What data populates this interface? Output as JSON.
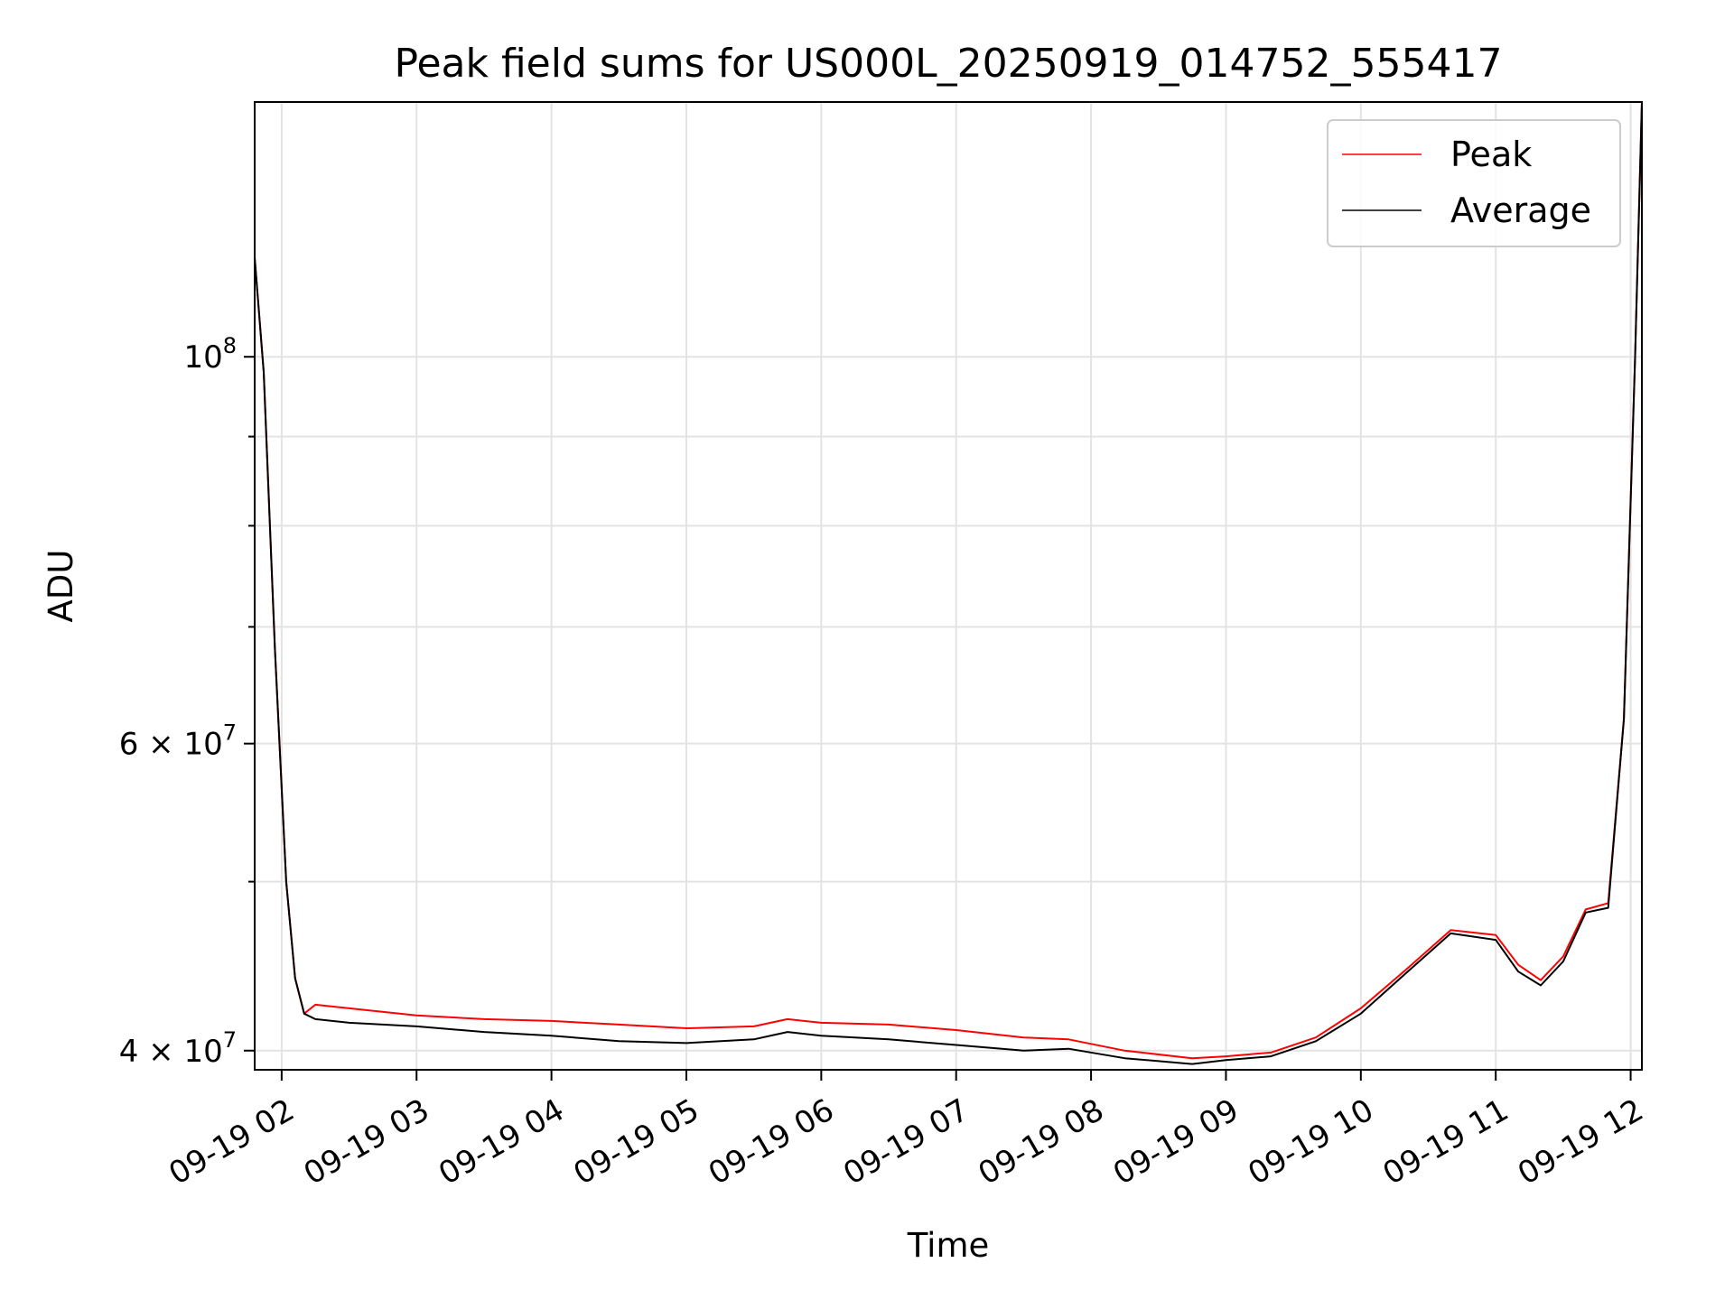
{
  "chart_data": {
    "type": "line",
    "title": "Peak field sums for US000L_20250919_014752_555417",
    "xlabel": "Time",
    "ylabel": "ADU",
    "xscale": "time",
    "yscale": "log",
    "grid": true,
    "legend_position": "top-right",
    "xlim": [
      "2025-09-19 01:48",
      "2025-09-19 12:05"
    ],
    "ylim": [
      39000000,
      140000000
    ],
    "x_ticks": [
      {
        "value": "2025-09-19 02:00",
        "label": "09-19 02"
      },
      {
        "value": "2025-09-19 03:00",
        "label": "09-19 03"
      },
      {
        "value": "2025-09-19 04:00",
        "label": "09-19 04"
      },
      {
        "value": "2025-09-19 05:00",
        "label": "09-19 05"
      },
      {
        "value": "2025-09-19 06:00",
        "label": "09-19 06"
      },
      {
        "value": "2025-09-19 07:00",
        "label": "09-19 07"
      },
      {
        "value": "2025-09-19 08:00",
        "label": "09-19 08"
      },
      {
        "value": "2025-09-19 09:00",
        "label": "09-19 09"
      },
      {
        "value": "2025-09-19 10:00",
        "label": "09-19 10"
      },
      {
        "value": "2025-09-19 11:00",
        "label": "09-19 11"
      },
      {
        "value": "2025-09-19 12:00",
        "label": "09-19 12"
      }
    ],
    "y_major_ticks": [
      {
        "value": 40000000,
        "base": "4 × 10",
        "exp": "7"
      },
      {
        "value": 60000000,
        "base": "6 × 10",
        "exp": "7"
      },
      {
        "value": 100000000,
        "base": "10",
        "exp": "8"
      }
    ],
    "y_minor_ticks": [
      50000000,
      70000000,
      80000000,
      90000000
    ],
    "series": [
      {
        "name": "Peak",
        "color": "#ff0000",
        "x": [
          "2025-09-19 01:48",
          "2025-09-19 01:52",
          "2025-09-19 01:57",
          "2025-09-19 02:02",
          "2025-09-19 02:06",
          "2025-09-19 02:10",
          "2025-09-19 02:15",
          "2025-09-19 02:30",
          "2025-09-19 03:00",
          "2025-09-19 03:30",
          "2025-09-19 04:00",
          "2025-09-19 04:30",
          "2025-09-19 05:00",
          "2025-09-19 05:30",
          "2025-09-19 05:45",
          "2025-09-19 06:00",
          "2025-09-19 06:30",
          "2025-09-19 07:00",
          "2025-09-19 07:30",
          "2025-09-19 07:50",
          "2025-09-19 08:15",
          "2025-09-19 08:45",
          "2025-09-19 09:00",
          "2025-09-19 09:20",
          "2025-09-19 09:40",
          "2025-09-19 10:00",
          "2025-09-19 10:20",
          "2025-09-19 10:40",
          "2025-09-19 11:00",
          "2025-09-19 11:10",
          "2025-09-19 11:20",
          "2025-09-19 11:30",
          "2025-09-19 11:40",
          "2025-09-19 11:50",
          "2025-09-19 11:57",
          "2025-09-19 12:02",
          "2025-09-19 12:05"
        ],
        "y": [
          114000000,
          98000000,
          68000000,
          50000000,
          44000000,
          42000000,
          42500000,
          42300000,
          41900000,
          41700000,
          41600000,
          41400000,
          41200000,
          41300000,
          41700000,
          41500000,
          41400000,
          41100000,
          40700000,
          40600000,
          40000000,
          39600000,
          39700000,
          39900000,
          40700000,
          42300000,
          44500000,
          46900000,
          46600000,
          44800000,
          43900000,
          45300000,
          48200000,
          48600000,
          62000000,
          100000000,
          140000000
        ]
      },
      {
        "name": "Average",
        "color": "#000000",
        "x": [
          "2025-09-19 01:48",
          "2025-09-19 01:52",
          "2025-09-19 01:57",
          "2025-09-19 02:02",
          "2025-09-19 02:06",
          "2025-09-19 02:10",
          "2025-09-19 02:15",
          "2025-09-19 02:30",
          "2025-09-19 03:00",
          "2025-09-19 03:30",
          "2025-09-19 04:00",
          "2025-09-19 04:30",
          "2025-09-19 05:00",
          "2025-09-19 05:30",
          "2025-09-19 05:45",
          "2025-09-19 06:00",
          "2025-09-19 06:30",
          "2025-09-19 07:00",
          "2025-09-19 07:30",
          "2025-09-19 07:50",
          "2025-09-19 08:15",
          "2025-09-19 08:45",
          "2025-09-19 09:00",
          "2025-09-19 09:20",
          "2025-09-19 09:40",
          "2025-09-19 10:00",
          "2025-09-19 10:20",
          "2025-09-19 10:40",
          "2025-09-19 11:00",
          "2025-09-19 11:10",
          "2025-09-19 11:20",
          "2025-09-19 11:30",
          "2025-09-19 11:40",
          "2025-09-19 11:50",
          "2025-09-19 11:57",
          "2025-09-19 12:02",
          "2025-09-19 12:05"
        ],
        "y": [
          114000000,
          98000000,
          68000000,
          50000000,
          44000000,
          42000000,
          41700000,
          41500000,
          41300000,
          41000000,
          40800000,
          40500000,
          40400000,
          40600000,
          41000000,
          40800000,
          40600000,
          40300000,
          40000000,
          40100000,
          39600000,
          39300000,
          39500000,
          39700000,
          40500000,
          42000000,
          44300000,
          46700000,
          46300000,
          44400000,
          43600000,
          45000000,
          48000000,
          48300000,
          62000000,
          100000000,
          140000000
        ]
      }
    ]
  }
}
